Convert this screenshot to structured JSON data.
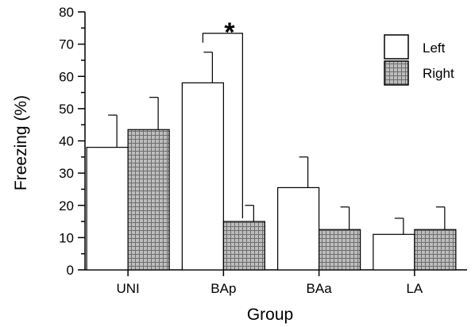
{
  "chart_data": {
    "type": "bar",
    "xlabel": "Group",
    "ylabel": "Freezing (%)",
    "ylim": [
      0,
      80
    ],
    "yticks": [
      "0",
      "10",
      "20",
      "30",
      "40",
      "50",
      "60",
      "70",
      "80"
    ],
    "categories": [
      "UNI",
      "BAp",
      "BAa",
      "LA"
    ],
    "series": [
      {
        "name": "Left",
        "values": [
          38,
          58,
          25.5,
          11
        ],
        "errors": [
          10,
          9.5,
          9.5,
          5
        ]
      },
      {
        "name": "Right",
        "values": [
          43.5,
          15,
          12.5,
          12.5
        ],
        "errors": [
          10,
          5,
          7,
          7
        ]
      }
    ],
    "legend_position": "top-right",
    "significance": {
      "label": "*",
      "category": "BAp",
      "between": [
        "Left",
        "Right"
      ]
    },
    "colors": {
      "Left": "#ffffff",
      "Right": "#b8b8b8",
      "pattern_line": "#6e6e6e"
    }
  }
}
